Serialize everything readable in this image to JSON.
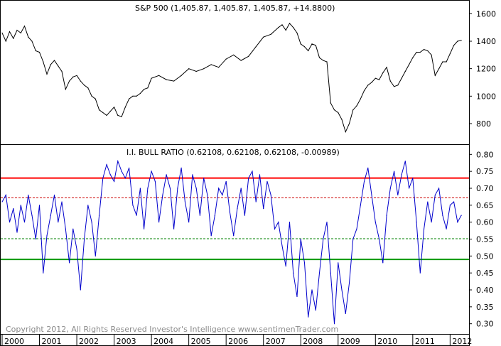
{
  "chart_data": [
    {
      "type": "line",
      "title": "S&P 500 (1,405.87, 1,405.87, 1,405.87, +14.8800)",
      "ylim": [
        650,
        1700
      ],
      "yticks": [
        800,
        1000,
        1200,
        1400,
        1600
      ],
      "grid": false,
      "series": [
        {
          "color": "#000000",
          "x": [
            2000.0,
            2000.1,
            2000.2,
            2000.3,
            2000.4,
            2000.5,
            2000.6,
            2000.7,
            2000.8,
            2000.9,
            2001.0,
            2001.1,
            2001.2,
            2001.3,
            2001.4,
            2001.5,
            2001.6,
            2001.7,
            2001.8,
            2001.9,
            2002.0,
            2002.1,
            2002.2,
            2002.3,
            2002.4,
            2002.5,
            2002.6,
            2002.7,
            2002.8,
            2002.9,
            2003.0,
            2003.1,
            2003.2,
            2003.3,
            2003.4,
            2003.5,
            2003.6,
            2003.7,
            2003.8,
            2003.9,
            2004.0,
            2004.2,
            2004.4,
            2004.6,
            2004.8,
            2005.0,
            2005.2,
            2005.4,
            2005.6,
            2005.8,
            2006.0,
            2006.2,
            2006.4,
            2006.6,
            2006.8,
            2007.0,
            2007.2,
            2007.4,
            2007.5,
            2007.6,
            2007.7,
            2007.8,
            2007.9,
            2008.0,
            2008.1,
            2008.2,
            2008.3,
            2008.4,
            2008.5,
            2008.6,
            2008.7,
            2008.8,
            2008.9,
            2009.0,
            2009.1,
            2009.2,
            2009.3,
            2009.4,
            2009.5,
            2009.6,
            2009.7,
            2009.8,
            2009.9,
            2010.0,
            2010.1,
            2010.2,
            2010.3,
            2010.4,
            2010.5,
            2010.6,
            2010.7,
            2010.8,
            2010.9,
            2011.0,
            2011.1,
            2011.2,
            2011.3,
            2011.4,
            2011.5,
            2011.6,
            2011.7,
            2011.8,
            2011.9,
            2012.0,
            2012.1,
            2012.2,
            2012.3
          ],
          "values": [
            1460,
            1400,
            1470,
            1420,
            1480,
            1460,
            1510,
            1430,
            1400,
            1330,
            1320,
            1250,
            1160,
            1230,
            1260,
            1220,
            1180,
            1050,
            1110,
            1140,
            1150,
            1110,
            1080,
            1060,
            1000,
            980,
            900,
            880,
            860,
            890,
            920,
            860,
            850,
            920,
            980,
            1000,
            1000,
            1020,
            1050,
            1060,
            1130,
            1150,
            1120,
            1110,
            1150,
            1200,
            1180,
            1200,
            1230,
            1210,
            1270,
            1300,
            1260,
            1290,
            1360,
            1430,
            1450,
            1500,
            1520,
            1480,
            1530,
            1500,
            1460,
            1380,
            1360,
            1330,
            1380,
            1370,
            1280,
            1260,
            1250,
            950,
            900,
            880,
            830,
            740,
            800,
            900,
            930,
            980,
            1040,
            1080,
            1100,
            1130,
            1120,
            1170,
            1210,
            1110,
            1070,
            1080,
            1130,
            1180,
            1230,
            1280,
            1320,
            1320,
            1340,
            1330,
            1300,
            1150,
            1200,
            1250,
            1250,
            1310,
            1370,
            1400,
            1406
          ]
        }
      ]
    },
    {
      "type": "line",
      "title": "I.I. BULL RATIO (0.62108, 0.62108, 0.62108, -0.00989)",
      "ylim": [
        0.27,
        0.83
      ],
      "yticks": [
        0.3,
        0.35,
        0.4,
        0.45,
        0.5,
        0.55,
        0.6,
        0.65,
        0.7,
        0.75,
        0.8
      ],
      "grid": false,
      "reference_lines": [
        {
          "value": 0.73,
          "color": "#ff0000",
          "style": "solid"
        },
        {
          "value": 0.672,
          "color": "#cc0000",
          "style": "dashed"
        },
        {
          "value": 0.551,
          "color": "#008000",
          "style": "dashed"
        },
        {
          "value": 0.49,
          "color": "#009900",
          "style": "solid"
        }
      ],
      "series": [
        {
          "color": "#0000cc",
          "x": [
            2000.0,
            2000.1,
            2000.2,
            2000.3,
            2000.4,
            2000.5,
            2000.6,
            2000.7,
            2000.8,
            2000.9,
            2001.0,
            2001.1,
            2001.2,
            2001.3,
            2001.4,
            2001.5,
            2001.6,
            2001.7,
            2001.8,
            2001.9,
            2002.0,
            2002.1,
            2002.2,
            2002.3,
            2002.4,
            2002.5,
            2002.6,
            2002.7,
            2002.8,
            2002.9,
            2003.0,
            2003.1,
            2003.2,
            2003.3,
            2003.4,
            2003.5,
            2003.6,
            2003.7,
            2003.8,
            2003.9,
            2004.0,
            2004.1,
            2004.2,
            2004.3,
            2004.4,
            2004.5,
            2004.6,
            2004.7,
            2004.8,
            2004.9,
            2005.0,
            2005.1,
            2005.2,
            2005.3,
            2005.4,
            2005.5,
            2005.6,
            2005.7,
            2005.8,
            2005.9,
            2006.0,
            2006.1,
            2006.2,
            2006.3,
            2006.4,
            2006.5,
            2006.6,
            2006.7,
            2006.8,
            2006.9,
            2007.0,
            2007.1,
            2007.2,
            2007.3,
            2007.4,
            2007.5,
            2007.6,
            2007.7,
            2007.8,
            2007.9,
            2008.0,
            2008.1,
            2008.2,
            2008.3,
            2008.4,
            2008.5,
            2008.6,
            2008.7,
            2008.8,
            2008.9,
            2009.0,
            2009.1,
            2009.2,
            2009.3,
            2009.4,
            2009.5,
            2009.6,
            2009.7,
            2009.8,
            2009.9,
            2010.0,
            2010.1,
            2010.2,
            2010.3,
            2010.4,
            2010.5,
            2010.6,
            2010.7,
            2010.8,
            2010.9,
            2011.0,
            2011.1,
            2011.2,
            2011.3,
            2011.4,
            2011.5,
            2011.6,
            2011.7,
            2011.8,
            2011.9,
            2012.0,
            2012.1,
            2012.2,
            2012.3
          ],
          "values": [
            0.66,
            0.68,
            0.6,
            0.64,
            0.57,
            0.65,
            0.6,
            0.68,
            0.62,
            0.55,
            0.65,
            0.45,
            0.56,
            0.62,
            0.68,
            0.6,
            0.66,
            0.58,
            0.48,
            0.58,
            0.52,
            0.4,
            0.55,
            0.65,
            0.6,
            0.5,
            0.62,
            0.73,
            0.77,
            0.74,
            0.72,
            0.78,
            0.75,
            0.73,
            0.76,
            0.65,
            0.62,
            0.7,
            0.58,
            0.7,
            0.75,
            0.72,
            0.6,
            0.68,
            0.74,
            0.7,
            0.58,
            0.7,
            0.76,
            0.66,
            0.6,
            0.74,
            0.7,
            0.62,
            0.73,
            0.68,
            0.56,
            0.62,
            0.7,
            0.68,
            0.72,
            0.63,
            0.56,
            0.64,
            0.7,
            0.62,
            0.73,
            0.75,
            0.66,
            0.74,
            0.64,
            0.72,
            0.68,
            0.58,
            0.6,
            0.53,
            0.47,
            0.6,
            0.45,
            0.38,
            0.55,
            0.48,
            0.32,
            0.4,
            0.34,
            0.45,
            0.55,
            0.6,
            0.45,
            0.3,
            0.48,
            0.4,
            0.33,
            0.42,
            0.55,
            0.58,
            0.65,
            0.72,
            0.76,
            0.68,
            0.6,
            0.55,
            0.48,
            0.62,
            0.7,
            0.75,
            0.68,
            0.74,
            0.78,
            0.7,
            0.73,
            0.6,
            0.45,
            0.58,
            0.66,
            0.6,
            0.68,
            0.7,
            0.62,
            0.58,
            0.65,
            0.66,
            0.6,
            0.62
          ]
        }
      ]
    }
  ],
  "x_axis": {
    "labels": [
      "2000",
      "2001",
      "2002",
      "2003",
      "2004",
      "2005",
      "2006",
      "2007",
      "2008",
      "2009",
      "2010",
      "2011",
      "2012"
    ]
  },
  "copyright": "Copyright 2012, All Rights Reserved  Investor's Intelligence  www.sentimenTrader.com"
}
